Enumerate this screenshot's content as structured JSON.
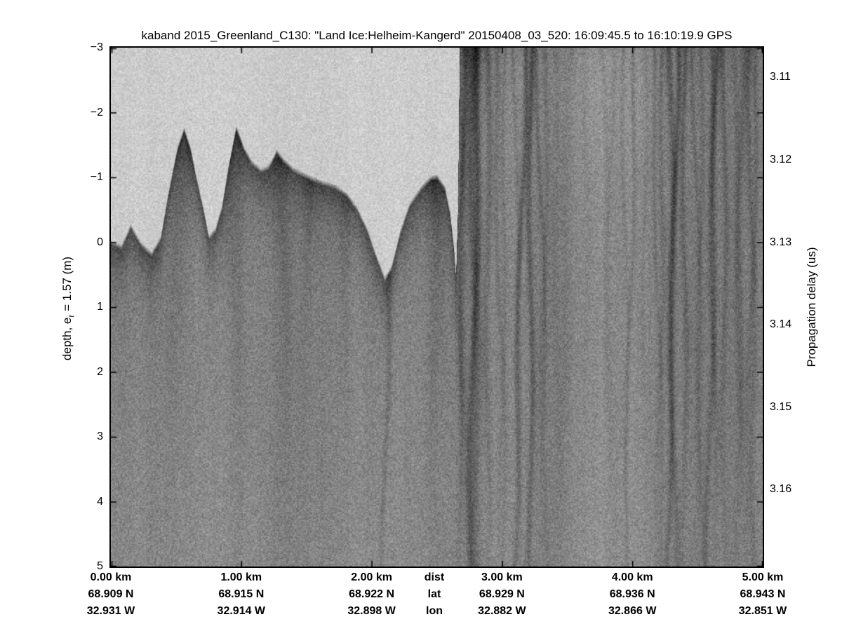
{
  "title": "kaband 2015_Greenland_C130: \"Land Ice:Helheim-Kangerd\"  20150408_03_520: 16:09:45.5 to 16:10:19.9 GPS",
  "left_axis": {
    "label_pre": "depth, e",
    "label_sub": "r",
    "label_post": " = 1.57 (m)",
    "tick_labels": [
      "−3",
      "−2",
      "−1",
      "0",
      "1",
      "2",
      "3",
      "4",
      "5"
    ]
  },
  "right_axis": {
    "label": "Propagation delay (us)",
    "tick_labels": [
      "3.11",
      "3.12",
      "3.13",
      "3.14",
      "3.15",
      "3.16"
    ]
  },
  "bottom_axis": {
    "headers": [
      "dist",
      "lat",
      "lon"
    ],
    "columns": [
      [
        "0.00 km",
        "68.909 N",
        "32.931 W"
      ],
      [
        "1.00 km",
        "68.915 N",
        "32.914 W"
      ],
      [
        "2.00 km",
        "68.922 N",
        "32.898 W"
      ],
      [
        "3.00 km",
        "68.929 N",
        "32.882 W"
      ],
      [
        "4.00 km",
        "68.936 N",
        "32.866 W"
      ],
      [
        "5.00 km",
        "68.943 N",
        "32.851 W"
      ]
    ]
  },
  "chart_data": {
    "type": "heatmap",
    "title": "kaband 2015_Greenland_C130: \"Land Ice:Helheim-Kangerd\"  20150408_03_520: 16:09:45.5 to 16:10:19.9 GPS",
    "colormap": "grayscale radar speckle (dark = strong return, light = weak return)",
    "x_axis": {
      "label": "dist",
      "units": "km",
      "range": [
        0,
        5
      ],
      "ticks": [
        0,
        1,
        2,
        3,
        4,
        5
      ]
    },
    "y_axis_left": {
      "label": "depth, e_r = 1.57 (m)",
      "units": "m",
      "range": [
        -3,
        5
      ],
      "ticks": [
        -3,
        -2,
        -1,
        0,
        1,
        2,
        3,
        4,
        5
      ]
    },
    "y_axis_right": {
      "label": "Propagation delay (us)",
      "units": "us",
      "ticks": [
        3.11,
        3.12,
        3.13,
        3.14,
        3.15,
        3.16
      ],
      "delay_at_zero_depth_us": 3.13,
      "m_per_0p01us": 1.271
    },
    "track": {
      "distance_km": [
        0,
        1,
        2,
        3,
        4,
        5
      ],
      "lat_N": [
        68.909,
        68.915,
        68.922,
        68.929,
        68.936,
        68.943
      ],
      "lon_W": [
        32.931,
        32.914,
        32.898,
        32.882,
        32.866,
        32.851
      ]
    },
    "surface_profile": {
      "distance_km": [
        0.0,
        0.08,
        0.15,
        0.23,
        0.31,
        0.38,
        0.44,
        0.51,
        0.56,
        0.61,
        0.65,
        0.71,
        0.75,
        0.8,
        0.85,
        0.9,
        0.96,
        1.02,
        1.08,
        1.15,
        1.21,
        1.27,
        1.32,
        1.4,
        1.51,
        1.62,
        1.72,
        1.81,
        1.88,
        1.96,
        2.03,
        2.1,
        2.15,
        2.22,
        2.29,
        2.38,
        2.45,
        2.5,
        2.56,
        2.6,
        2.63,
        2.645,
        2.66,
        2.675,
        5.0
      ],
      "depth_m": [
        0.0,
        0.07,
        -0.25,
        0.03,
        0.18,
        -0.06,
        -0.76,
        -1.46,
        -1.74,
        -1.44,
        -1.03,
        -0.49,
        -0.08,
        -0.19,
        -0.54,
        -1.16,
        -1.77,
        -1.44,
        -1.23,
        -1.11,
        -1.16,
        -1.4,
        -1.27,
        -1.12,
        -1.01,
        -0.92,
        -0.86,
        -0.73,
        -0.54,
        -0.21,
        0.2,
        0.57,
        0.39,
        -0.17,
        -0.58,
        -0.84,
        -0.99,
        -1.01,
        -0.84,
        -0.45,
        0.1,
        0.55,
        -0.5,
        -3.2,
        -3.2
      ]
    },
    "dark_streaks": [
      {
        "km": 0.56,
        "w": 13,
        "i": 36,
        "curtain": true,
        "deep": false
      },
      {
        "km": 0.963,
        "w": 13,
        "i": 40,
        "curtain": true,
        "deep": false
      },
      {
        "km": 1.276,
        "w": 11,
        "i": 30,
        "curtain": true,
        "deep": false
      },
      {
        "km": 1.518,
        "w": 9,
        "i": 18,
        "curtain": true,
        "deep": false
      },
      {
        "km": 1.787,
        "w": 8,
        "i": 16,
        "curtain": true,
        "deep": false
      },
      {
        "km": 2.164,
        "w": 4,
        "i": 26,
        "curtain": true,
        "deep": true
      },
      {
        "km": 2.487,
        "w": 12,
        "i": 30,
        "curtain": true,
        "deep": false
      },
      {
        "km": 2.659,
        "w": 5,
        "i": 28,
        "curtain": false,
        "deep": false
      },
      {
        "km": 2.702,
        "w": 4,
        "i": 40,
        "curtain": false,
        "deep": false
      },
      {
        "km": 2.767,
        "w": 7,
        "i": 52,
        "curtain": false,
        "deep": true
      },
      {
        "km": 2.826,
        "w": 5,
        "i": 58,
        "curtain": false,
        "deep": true
      },
      {
        "km": 2.89,
        "w": 5,
        "i": 34,
        "curtain": false,
        "deep": false
      },
      {
        "km": 2.944,
        "w": 4,
        "i": 24,
        "curtain": false,
        "deep": false
      },
      {
        "km": 3.025,
        "w": 3,
        "i": 16,
        "curtain": false,
        "deep": false
      },
      {
        "km": 3.095,
        "w": 3,
        "i": 20,
        "curtain": false,
        "deep": false
      },
      {
        "km": 3.175,
        "w": 4,
        "i": 50,
        "curtain": false,
        "deep": true
      },
      {
        "km": 3.218,
        "w": 4,
        "i": 56,
        "curtain": false,
        "deep": true
      },
      {
        "km": 3.272,
        "w": 3,
        "i": 28,
        "curtain": false,
        "deep": false
      },
      {
        "km": 3.337,
        "w": 4,
        "i": 20,
        "curtain": false,
        "deep": false
      },
      {
        "km": 3.401,
        "w": 5,
        "i": 14,
        "curtain": false,
        "deep": false
      },
      {
        "km": 3.52,
        "w": 8,
        "i": 12,
        "curtain": false,
        "deep": false
      },
      {
        "km": 3.643,
        "w": 5,
        "i": 10,
        "curtain": false,
        "deep": false
      },
      {
        "km": 3.767,
        "w": 4,
        "i": 13,
        "curtain": false,
        "deep": false
      },
      {
        "km": 3.843,
        "w": 3,
        "i": 11,
        "curtain": false,
        "deep": false
      },
      {
        "km": 3.929,
        "w": 3,
        "i": 15,
        "curtain": false,
        "deep": false
      },
      {
        "km": 4.02,
        "w": 3,
        "i": 26,
        "curtain": false,
        "deep": true
      },
      {
        "km": 4.09,
        "w": 3,
        "i": 13,
        "curtain": false,
        "deep": false
      },
      {
        "km": 4.155,
        "w": 3,
        "i": 22,
        "curtain": false,
        "deep": true
      },
      {
        "km": 4.235,
        "w": 4,
        "i": 28,
        "curtain": false,
        "deep": false
      },
      {
        "km": 4.289,
        "w": 5,
        "i": 42,
        "curtain": false,
        "deep": true
      },
      {
        "km": 4.343,
        "w": 4,
        "i": 48,
        "curtain": false,
        "deep": true
      },
      {
        "km": 4.397,
        "w": 4,
        "i": 38,
        "curtain": false,
        "deep": false
      },
      {
        "km": 4.467,
        "w": 3,
        "i": 23,
        "curtain": false,
        "deep": false
      },
      {
        "km": 4.531,
        "w": 3,
        "i": 16,
        "curtain": false,
        "deep": false
      },
      {
        "km": 4.596,
        "w": 4,
        "i": 32,
        "curtain": false,
        "deep": false
      },
      {
        "km": 4.65,
        "w": 4,
        "i": 42,
        "curtain": false,
        "deep": true
      },
      {
        "km": 4.703,
        "w": 4,
        "i": 32,
        "curtain": false,
        "deep": false
      },
      {
        "km": 4.773,
        "w": 4,
        "i": 18,
        "curtain": false,
        "deep": false
      },
      {
        "km": 4.843,
        "w": 5,
        "i": 26,
        "curtain": false,
        "deep": false
      },
      {
        "km": 4.897,
        "w": 4,
        "i": 32,
        "curtain": false,
        "deep": true
      },
      {
        "km": 4.951,
        "w": 4,
        "i": 28,
        "curtain": false,
        "deep": false
      }
    ]
  }
}
